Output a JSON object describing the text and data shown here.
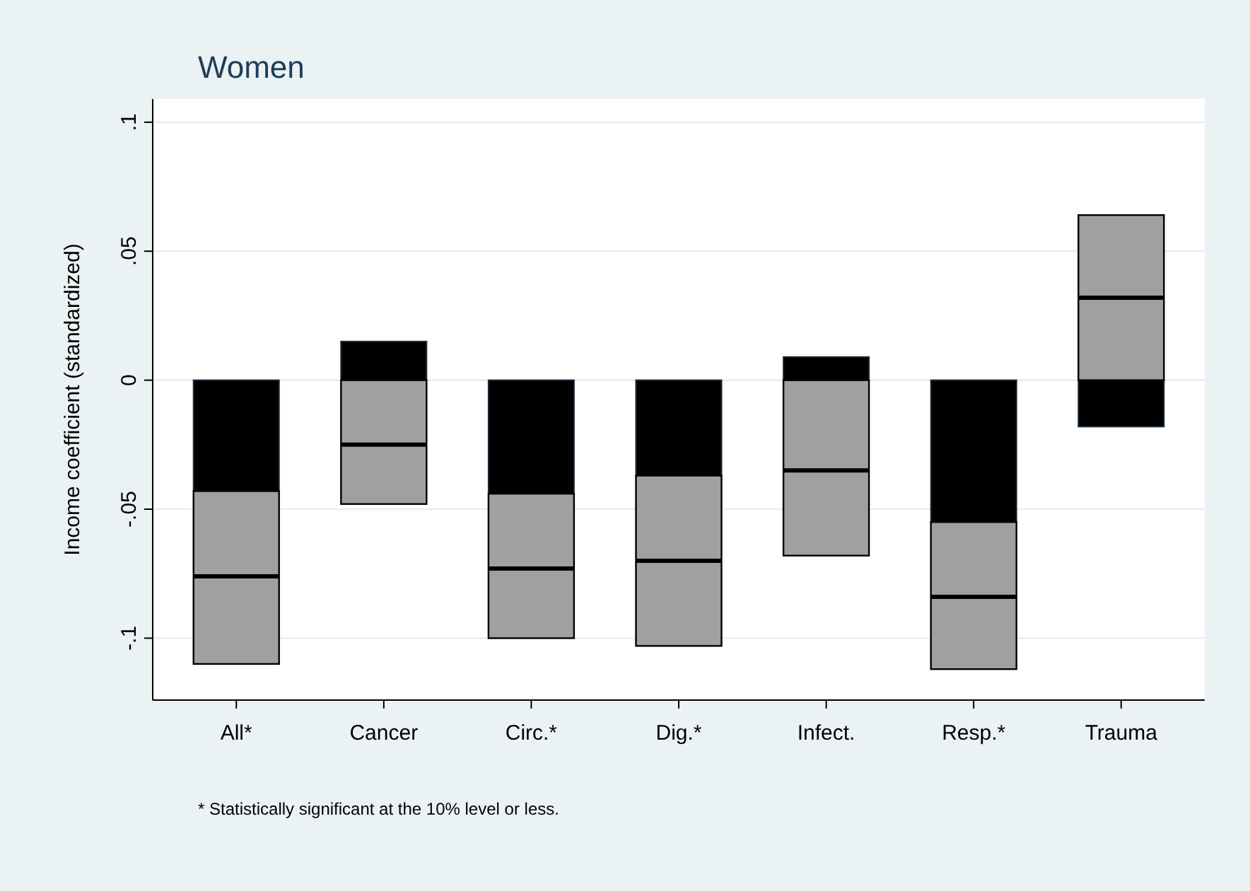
{
  "chart_data": {
    "type": "box",
    "title": "Women",
    "ylabel": "Income coefficient (standardized)",
    "categories": [
      "All*",
      "Cancer",
      "Circ.*",
      "Dig.*",
      "Infect.",
      "Resp.*",
      "Trauma"
    ],
    "series": [
      {
        "type": "bar",
        "color": "#000000",
        "values": [
          -0.043,
          0.015,
          -0.044,
          -0.037,
          0.009,
          -0.055,
          -0.018
        ]
      },
      {
        "color": "#a0a0a0",
        "boxes": [
          {
            "low": -0.11,
            "q1": -0.11,
            "median": -0.076,
            "q3": -0.043,
            "high": -0.043
          },
          {
            "low": -0.048,
            "q1": -0.048,
            "median": -0.025,
            "q3": 0,
            "high": 0
          },
          {
            "low": -0.1,
            "q1": -0.1,
            "median": -0.073,
            "q3": -0.044,
            "high": -0.044
          },
          {
            "low": -0.103,
            "q1": -0.103,
            "median": -0.07,
            "q3": -0.037,
            "high": -0.037
          },
          {
            "low": -0.068,
            "q1": -0.068,
            "median": -0.035,
            "q3": 0,
            "high": 0
          },
          {
            "low": -0.112,
            "q1": -0.112,
            "median": -0.084,
            "q3": -0.055,
            "high": -0.055
          },
          {
            "low": 0,
            "q1": 0,
            "median": 0.032,
            "q3": 0.064,
            "high": 0.064
          }
        ]
      }
    ],
    "ylim": [
      -0.124,
      0.109
    ],
    "yticks": [
      {
        "value": -0.1,
        "label": "-.1"
      },
      {
        "value": -0.05,
        "label": "-.05"
      },
      {
        "value": 0,
        "label": "0"
      },
      {
        "value": 0.05,
        "label": ".05"
      },
      {
        "value": 0.1,
        "label": ".1"
      }
    ],
    "grid": "y",
    "annotations": [
      "* Statistically significant at the 10% level or less."
    ]
  }
}
